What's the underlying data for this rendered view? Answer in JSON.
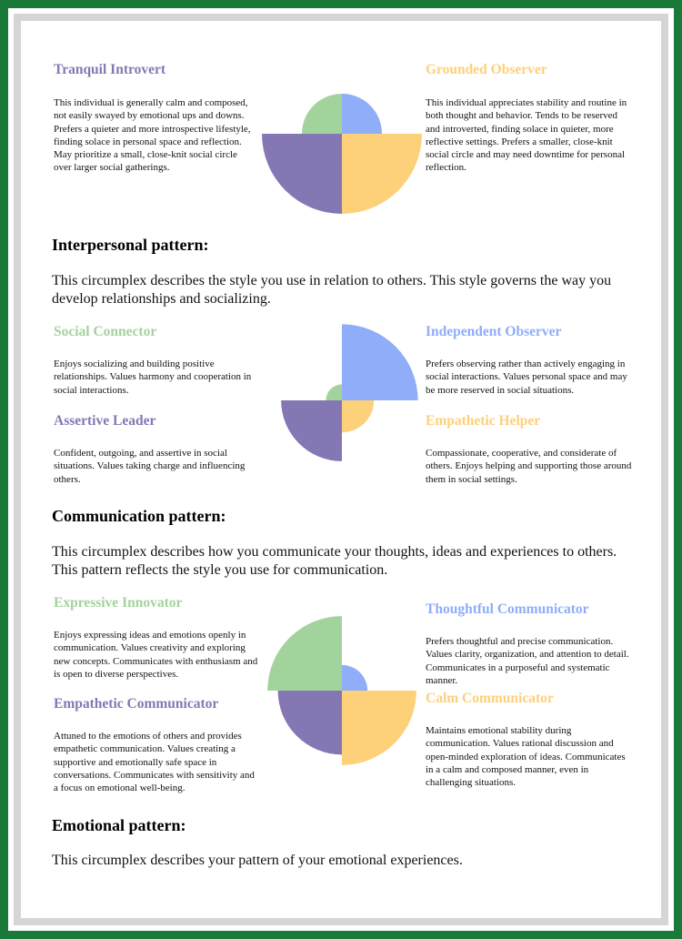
{
  "blocks": [
    {
      "cards": [
        {
          "title": "Tranquil Introvert",
          "title_color": "#8577b3",
          "text": "This individual is generally calm and composed, not easily swayed by emotional ups and downs. Prefers a quieter and more introspective lifestyle, finding solace in personal space and reflection. May prioritize a small, close-knit social circle over larger social gatherings."
        },
        {
          "title": "Grounded Observer",
          "title_color": "#fdd07a",
          "text": "This individual appreciates stability and routine in both thought and behavior. Tends to be reserved and introverted, finding solace in quieter, more reflective settings. Prefers a smaller, close-knit social circle and may need downtime for personal reflection."
        }
      ],
      "wedges": [
        {
          "color": "#a3d39c",
          "value": 50
        },
        {
          "color": "#8fadf8",
          "value": 50
        },
        {
          "color": "#8577b3",
          "value": 100
        },
        {
          "color": "#fdd07a",
          "value": 100
        }
      ]
    },
    {
      "heading": "Interpersonal pattern:",
      "intro": "This circumplex describes the style you use in relation to others. This style governs the way you develop relationships and socializing.",
      "cards": [
        {
          "title": "Social Connector",
          "title_color": "#a3d39c",
          "text": "Enjoys socializing and building positive relationships. Values harmony and cooperation in social interactions."
        },
        {
          "title": "Independent Observer",
          "title_color": "#8fadf8",
          "text": "Prefers observing rather than actively engaging in social interactions. Values personal space and may be more reserved in social situations."
        },
        {
          "title": "Assertive Leader",
          "title_color": "#8577b3",
          "text": "Confident, outgoing, and assertive in social situations. Values taking charge and influencing others."
        },
        {
          "title": "Empathetic Helper",
          "title_color": "#fdd07a",
          "text": "Compassionate, cooperative, and considerate of others. Enjoys helping and supporting those around them in social settings."
        }
      ],
      "wedges": [
        {
          "color": "#a3d39c",
          "value": 20
        },
        {
          "color": "#8fadf8",
          "value": 95
        },
        {
          "color": "#8577b3",
          "value": 76
        },
        {
          "color": "#fdd07a",
          "value": 40
        }
      ]
    },
    {
      "heading": "Communication pattern:",
      "intro": "This circumplex describes how you communicate your thoughts, ideas and experiences to others. This pattern reflects the style you use for communication.",
      "cards": [
        {
          "title": "Expressive Innovator",
          "title_color": "#a3d39c",
          "text": "Enjoys expressing ideas and emotions openly in communication. Values creativity and exploring new concepts. Communicates with enthusiasm and is open to diverse perspectives."
        },
        {
          "title": "Thoughtful Communicator",
          "title_color": "#8fadf8",
          "text": "Prefers thoughtful and precise communication. Values clarity, organization, and attention to detail. Communicates in a purposeful and systematic manner."
        },
        {
          "title": "Empathetic Communicator",
          "title_color": "#8577b3",
          "text": "Attuned to the emotions of others and provides empathetic communication. Values creating a supportive and emotionally safe space in conversations. Communicates with sensitivity and a focus on emotional well-being."
        },
        {
          "title": "Calm Communicator",
          "title_color": "#fdd07a",
          "text": "Maintains emotional stability during communication. Values rational discussion and open-minded exploration of ideas. Communicates in a calm and composed manner, even in challenging situations."
        }
      ],
      "wedges": [
        {
          "color": "#a3d39c",
          "value": 93
        },
        {
          "color": "#8fadf8",
          "value": 32
        },
        {
          "color": "#8577b3",
          "value": 80
        },
        {
          "color": "#fdd07a",
          "value": 93
        }
      ]
    },
    {
      "heading": "Emotional pattern:",
      "intro": "This circumplex describes your pattern of your emotional experiences."
    }
  ]
}
